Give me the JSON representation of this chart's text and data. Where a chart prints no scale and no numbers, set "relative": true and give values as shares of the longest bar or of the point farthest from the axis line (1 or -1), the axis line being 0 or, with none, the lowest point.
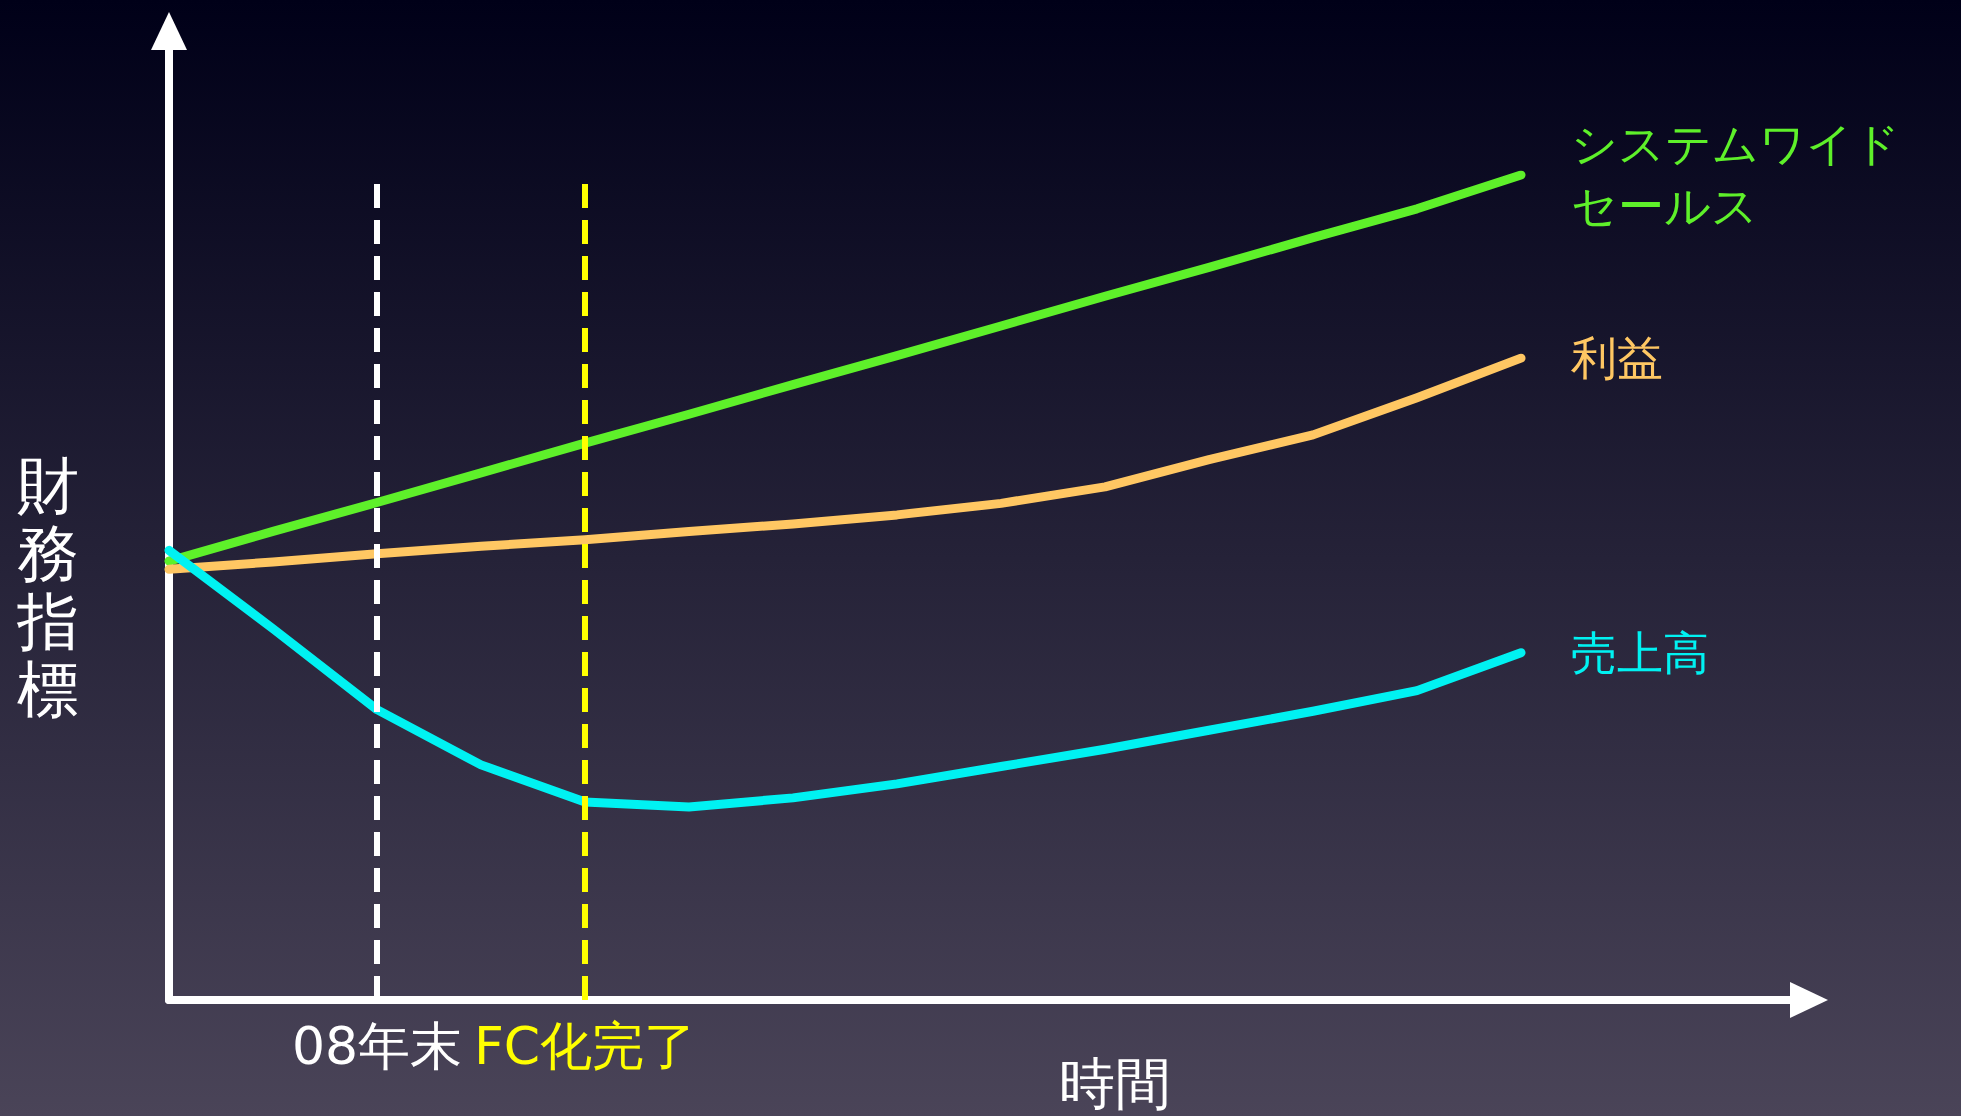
{
  "chart_data": {
    "type": "line",
    "relative": true,
    "xlabel": "時間",
    "ylabel": "財務指標",
    "legend": false,
    "grid": false,
    "line_style": "solid",
    "annotations": [
      "08年末",
      "FC化完了"
    ],
    "categories": [
      null,
      null,
      null,
      null,
      null,
      null,
      null,
      null,
      null,
      null,
      null,
      null,
      null,
      null
    ],
    "series": [
      {
        "name": "システムワイドセールス",
        "color": "#5ef02a",
        "values": [
          0.532,
          0.568,
          0.603,
          0.639,
          0.675,
          0.71,
          0.746,
          0.781,
          0.817,
          0.853,
          0.888,
          0.924,
          0.959,
          1.0
        ]
      },
      {
        "name": "利益",
        "color": "#ffc763",
        "values": [
          0.522,
          0.531,
          0.541,
          0.55,
          0.558,
          0.568,
          0.577,
          0.588,
          0.602,
          0.622,
          0.655,
          0.685,
          0.73,
          0.778
        ]
      },
      {
        "name": "売上高",
        "color": "#00f2f2",
        "values": [
          0.545,
          0.45,
          0.352,
          0.285,
          0.24,
          0.234,
          0.245,
          0.262,
          0.283,
          0.304,
          0.327,
          0.35,
          0.375,
          0.421
        ]
      }
    ]
  }
}
